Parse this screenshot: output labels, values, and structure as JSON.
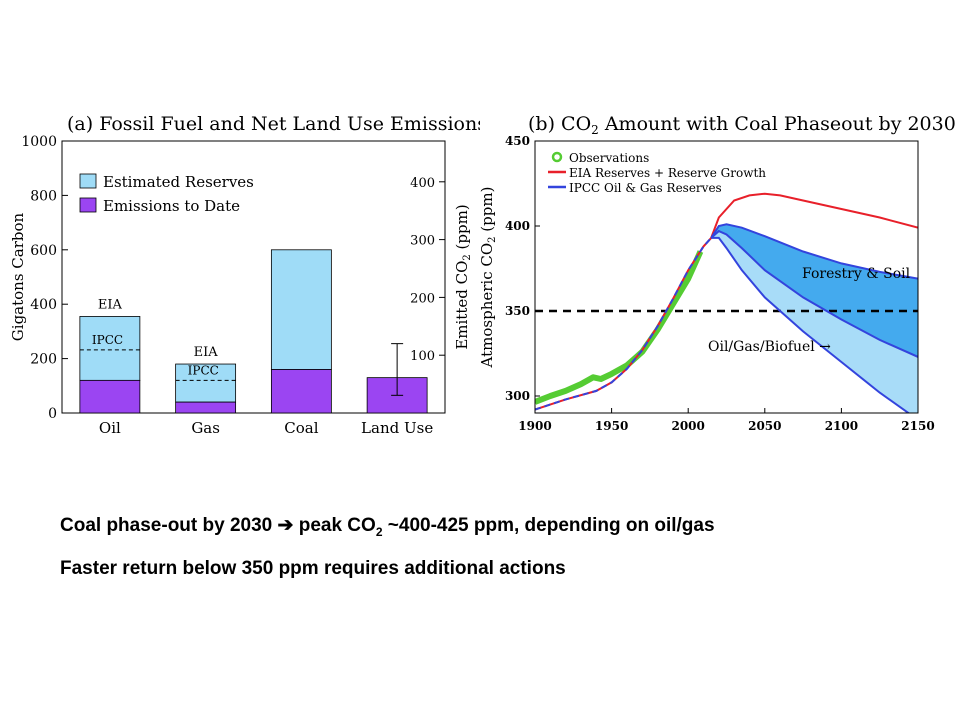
{
  "colors": {
    "reserves": "#9fdcf7",
    "emissions": "#9b45f2",
    "observations": "#55cc33",
    "eia": "#e8202a",
    "ipcc": "#3344dd",
    "forestry_fill": "#44aaee",
    "oilgas_fill": "#a8dcf8",
    "threshold": "#000000"
  },
  "chart_data": [
    {
      "type": "bar",
      "title": "(a)  Fossil Fuel and Net Land Use Emissions",
      "ylabel": "Gigatons Carbon",
      "ylabel_right": "Emitted CO2 (ppm)",
      "ylim": [
        0,
        1000
      ],
      "yticks": [
        0,
        200,
        400,
        600,
        800,
        1000
      ],
      "yticks_right": [
        100,
        200,
        300,
        400
      ],
      "categories": [
        "Oil",
        "Gas",
        "Coal",
        "Land Use"
      ],
      "legend": [
        "Estimated Reserves",
        "Emissions to Date"
      ],
      "series": [
        {
          "name": "Emissions to Date",
          "values": [
            120,
            40,
            160,
            130
          ]
        },
        {
          "name": "Estimated Reserves",
          "values": [
            235,
            140,
            440,
            0
          ]
        }
      ],
      "land_use_error": [
        65,
        255
      ],
      "annotations": [
        {
          "text": "EIA",
          "category": "Oil",
          "value": 355
        },
        {
          "text": "IPCC",
          "category": "Oil",
          "value": 232
        },
        {
          "text": "EIA",
          "category": "Gas",
          "value": 180
        },
        {
          "text": "IPCC",
          "category": "Gas",
          "value": 120
        }
      ]
    },
    {
      "type": "line",
      "title": "(b)  CO2 Amount with Coal Phaseout by 2030",
      "ylabel": "Atmospheric CO2 (ppm)",
      "xlim": [
        1900,
        2150
      ],
      "ylim": [
        290,
        450
      ],
      "xticks": [
        1900,
        1950,
        2000,
        2050,
        2100,
        2150
      ],
      "yticks": [
        300,
        350,
        400,
        450
      ],
      "threshold": 350,
      "legend": [
        "Observations",
        "EIA Reserves + Reserve Growth",
        "IPCC Oil & Gas Reserves"
      ],
      "observations": {
        "x": [
          1900,
          1910,
          1920,
          1930,
          1938,
          1943,
          1950,
          1960,
          1970,
          1980,
          1990,
          2000,
          2008
        ],
        "y": [
          296.5,
          300,
          303,
          307,
          311,
          310,
          313,
          318,
          326,
          339,
          354,
          369,
          385
        ]
      },
      "base": {
        "x": [
          1900,
          1920,
          1940,
          1950,
          1960,
          1970,
          1980,
          1990,
          2000,
          2010,
          2015
        ],
        "y": [
          292,
          298,
          303,
          308,
          316,
          327,
          341,
          357,
          374,
          388,
          393
        ]
      },
      "eia": {
        "x": [
          2015,
          2020,
          2030,
          2040,
          2050,
          2060,
          2075,
          2100,
          2125,
          2150
        ],
        "y": [
          393,
          405,
          415,
          418,
          419,
          418,
          415,
          410,
          405,
          399
        ]
      },
      "ipcc_upper": {
        "x": [
          2015,
          2020,
          2025,
          2035,
          2050,
          2075,
          2100,
          2125,
          2150
        ],
        "y": [
          393,
          400,
          401,
          399,
          394,
          385,
          378,
          373,
          369
        ]
      },
      "ipcc_mid": {
        "x": [
          2015,
          2020,
          2025,
          2035,
          2050,
          2075,
          2100,
          2125,
          2150
        ],
        "y": [
          393,
          397,
          395,
          387,
          374,
          358,
          345,
          333,
          323
        ]
      },
      "ipcc_lower": {
        "x": [
          2015,
          2020,
          2025,
          2035,
          2050,
          2075,
          2100,
          2125,
          2150
        ],
        "y": [
          393,
          393,
          387,
          374,
          358,
          338,
          320,
          302,
          286
        ]
      },
      "labels": {
        "forestry": "Forestry & Soil",
        "oilgas": "Oil/Gas/Biofuel  →"
      }
    }
  ],
  "captions": {
    "line1_pre": "Coal phase-out by 2030 ",
    "line1_arrow": "➔",
    "line1_mid": " peak CO",
    "line1_sub": "2",
    "line1_post": " ~400-425 ppm, depending on oil/gas",
    "line2": "Faster return below 350 ppm requires additional actions"
  }
}
